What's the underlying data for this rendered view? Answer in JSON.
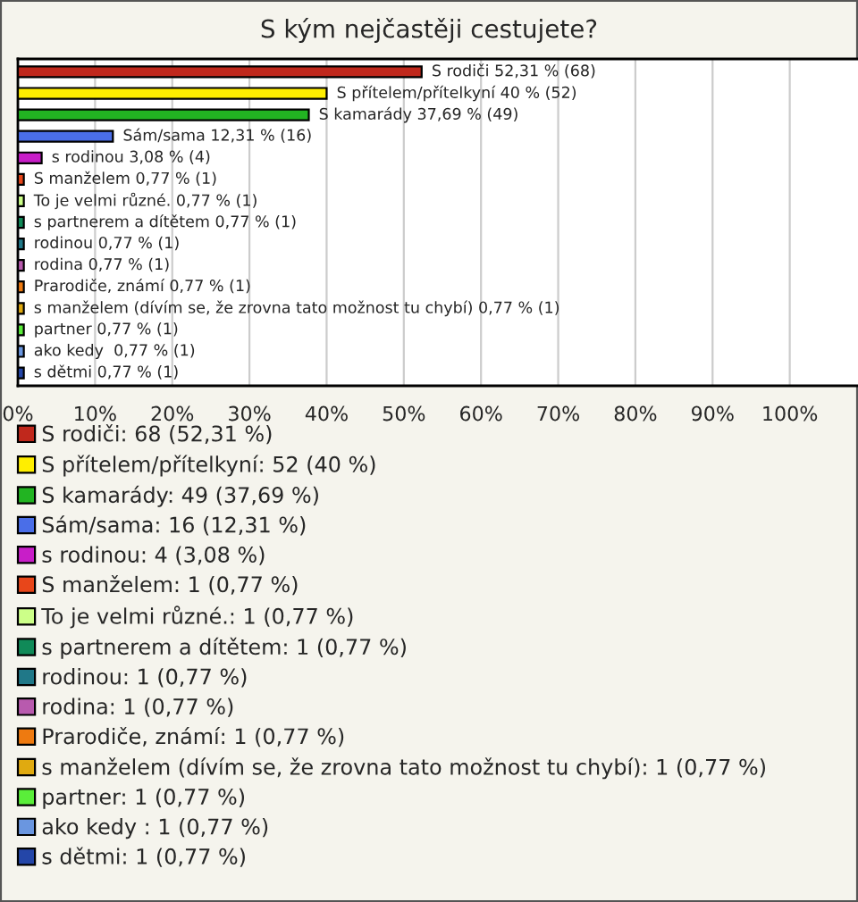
{
  "chart_data": {
    "type": "bar",
    "orientation": "horizontal",
    "title": "S kým nejčastěji cestujete?",
    "categories": [
      null,
      null,
      null,
      null,
      null,
      null,
      null,
      null,
      null,
      null,
      null,
      null,
      null,
      null,
      null
    ],
    "series": [
      {
        "name": "S rodiči: 68 (52,31 %)",
        "color": "#c0281c",
        "values": [
          52.31,
          null,
          null,
          null,
          null,
          null,
          null,
          null,
          null,
          null,
          null,
          null,
          null,
          null,
          null
        ],
        "value_labels": [
          "S rodiči 52,31 % (68)",
          null,
          null,
          null,
          null,
          null,
          null,
          null,
          null,
          null,
          null,
          null,
          null,
          null,
          null
        ]
      },
      {
        "name": "S přítelem/přítelkyní: 52 (40 %)",
        "color": "#ffee00",
        "values": [
          null,
          40,
          null,
          null,
          null,
          null,
          null,
          null,
          null,
          null,
          null,
          null,
          null,
          null,
          null
        ],
        "value_labels": [
          null,
          "S přítelem/přítelkyní 40 % (52)",
          null,
          null,
          null,
          null,
          null,
          null,
          null,
          null,
          null,
          null,
          null,
          null,
          null
        ]
      },
      {
        "name": "S kamarády: 49 (37,69 %)",
        "color": "#22b422",
        "values": [
          null,
          null,
          37.69,
          null,
          null,
          null,
          null,
          null,
          null,
          null,
          null,
          null,
          null,
          null,
          null
        ],
        "value_labels": [
          null,
          null,
          "S kamarády 37,69 % (49)",
          null,
          null,
          null,
          null,
          null,
          null,
          null,
          null,
          null,
          null,
          null,
          null
        ]
      },
      {
        "name": "Sám/sama: 16 (12,31 %)",
        "color": "#4a6ee8",
        "values": [
          null,
          null,
          null,
          12.31,
          null,
          null,
          null,
          null,
          null,
          null,
          null,
          null,
          null,
          null,
          null
        ],
        "value_labels": [
          null,
          null,
          null,
          "Sám/sama 12,31 % (16)",
          null,
          null,
          null,
          null,
          null,
          null,
          null,
          null,
          null,
          null,
          null
        ]
      },
      {
        "name": "s rodinou: 4 (3,08 %)",
        "color": "#c81ec8",
        "values": [
          null,
          null,
          null,
          null,
          3.08,
          null,
          null,
          null,
          null,
          null,
          null,
          null,
          null,
          null,
          null
        ],
        "value_labels": [
          null,
          null,
          null,
          null,
          "s rodinou 3,08 % (4)",
          null,
          null,
          null,
          null,
          null,
          null,
          null,
          null,
          null,
          null
        ]
      },
      {
        "name": "S manželem: 1 (0,77 %)",
        "color": "#e8461a",
        "values": [
          null,
          null,
          null,
          null,
          null,
          0.77,
          null,
          null,
          null,
          null,
          null,
          null,
          null,
          null,
          null
        ],
        "value_labels": [
          null,
          null,
          null,
          null,
          null,
          "S manželem 0,77 % (1)",
          null,
          null,
          null,
          null,
          null,
          null,
          null,
          null,
          null
        ]
      },
      {
        "name": "To je velmi různé.: 1 (0,77 %)",
        "color": "#ccff88",
        "values": [
          null,
          null,
          null,
          null,
          null,
          null,
          0.77,
          null,
          null,
          null,
          null,
          null,
          null,
          null,
          null
        ],
        "value_labels": [
          null,
          null,
          null,
          null,
          null,
          null,
          "To je velmi různé. 0,77 % (1)",
          null,
          null,
          null,
          null,
          null,
          null,
          null,
          null
        ]
      },
      {
        "name": "s partnerem a dítětem: 1 (0,77 %)",
        "color": "#108a58",
        "values": [
          null,
          null,
          null,
          null,
          null,
          null,
          null,
          0.77,
          null,
          null,
          null,
          null,
          null,
          null,
          null
        ],
        "value_labels": [
          null,
          null,
          null,
          null,
          null,
          null,
          null,
          "s partnerem a dítětem 0,77 % (1)",
          null,
          null,
          null,
          null,
          null,
          null,
          null
        ]
      },
      {
        "name": "rodinou: 1 (0,77 %)",
        "color": "#207888",
        "values": [
          null,
          null,
          null,
          null,
          null,
          null,
          null,
          null,
          0.77,
          null,
          null,
          null,
          null,
          null,
          null
        ],
        "value_labels": [
          null,
          null,
          null,
          null,
          null,
          null,
          null,
          null,
          "rodinou 0,77 % (1)",
          null,
          null,
          null,
          null,
          null,
          null
        ]
      },
      {
        "name": "rodina: 1 (0,77 %)",
        "color": "#b85aae",
        "values": [
          null,
          null,
          null,
          null,
          null,
          null,
          null,
          null,
          null,
          0.77,
          null,
          null,
          null,
          null,
          null
        ],
        "value_labels": [
          null,
          null,
          null,
          null,
          null,
          null,
          null,
          null,
          null,
          "rodina 0,77 % (1)",
          null,
          null,
          null,
          null,
          null
        ]
      },
      {
        "name": "Prarodiče, známí: 1 (0,77 %)",
        "color": "#ee7a10",
        "values": [
          null,
          null,
          null,
          null,
          null,
          null,
          null,
          null,
          null,
          null,
          0.77,
          null,
          null,
          null,
          null
        ],
        "value_labels": [
          null,
          null,
          null,
          null,
          null,
          null,
          null,
          null,
          null,
          null,
          "Prarodiče, známí 0,77 % (1)",
          null,
          null,
          null,
          null
        ]
      },
      {
        "name": "s manželem (dívím se, že zrovna tato možnost tu chybí): 1 (0,77 %)",
        "color": "#e0aa10",
        "values": [
          null,
          null,
          null,
          null,
          null,
          null,
          null,
          null,
          null,
          null,
          null,
          0.77,
          null,
          null,
          null
        ],
        "value_labels": [
          null,
          null,
          null,
          null,
          null,
          null,
          null,
          null,
          null,
          null,
          null,
          "s manželem (dívím se, že zrovna tato možnost tu chybí) 0,77 % (1)",
          null,
          null,
          null
        ]
      },
      {
        "name": "partner: 1 (0,77 %)",
        "color": "#5aee3a",
        "values": [
          null,
          null,
          null,
          null,
          null,
          null,
          null,
          null,
          null,
          null,
          null,
          null,
          0.77,
          null,
          null
        ],
        "value_labels": [
          null,
          null,
          null,
          null,
          null,
          null,
          null,
          null,
          null,
          null,
          null,
          null,
          "partner 0,77 % (1)",
          null,
          null
        ]
      },
      {
        "name": "ako kedy : 1 (0,77 %)",
        "color": "#6a96e0",
        "values": [
          null,
          null,
          null,
          null,
          null,
          null,
          null,
          null,
          null,
          null,
          null,
          null,
          null,
          0.77,
          null
        ],
        "value_labels": [
          null,
          null,
          null,
          null,
          null,
          null,
          null,
          null,
          null,
          null,
          null,
          null,
          null,
          "ako kedy  0,77 % (1)",
          null
        ]
      },
      {
        "name": "s dětmi: 1 (0,77 %)",
        "color": "#2446a8",
        "values": [
          null,
          null,
          null,
          null,
          null,
          null,
          null,
          null,
          null,
          null,
          null,
          null,
          null,
          null,
          0.77
        ],
        "value_labels": [
          null,
          null,
          null,
          null,
          null,
          null,
          null,
          null,
          null,
          null,
          null,
          null,
          null,
          null,
          "s dětmi 0,77 % (1)"
        ]
      }
    ],
    "xlim": [
      0,
      110
    ],
    "xticks": [
      {
        "value": 0,
        "label": "0%"
      },
      {
        "value": 10,
        "label": "10%"
      },
      {
        "value": 20,
        "label": "20%"
      },
      {
        "value": 30,
        "label": "30%"
      },
      {
        "value": 40,
        "label": "40%"
      },
      {
        "value": 50,
        "label": "50%"
      },
      {
        "value": 60,
        "label": "60%"
      },
      {
        "value": 70,
        "label": "70%"
      },
      {
        "value": 80,
        "label": "80%"
      },
      {
        "value": 90,
        "label": "90%"
      },
      {
        "value": 100,
        "label": "100%"
      }
    ],
    "grid": "x",
    "legend": "bottom"
  }
}
